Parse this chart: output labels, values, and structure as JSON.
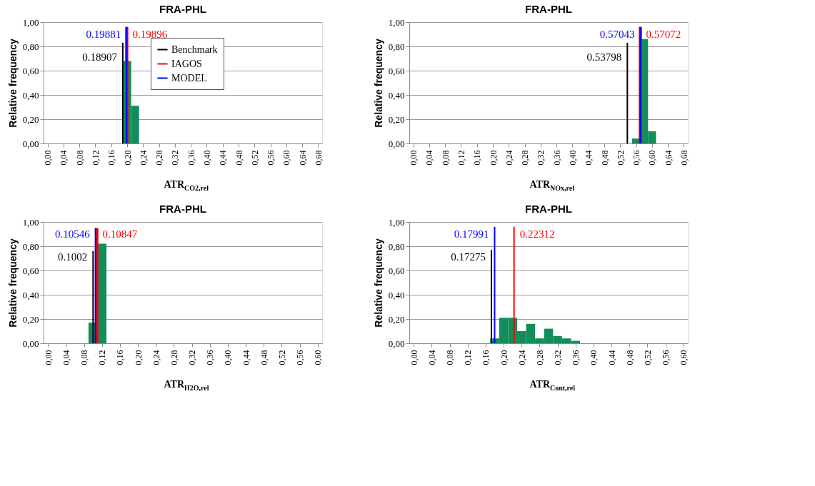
{
  "chart_data": [
    {
      "type": "histogram",
      "title": "FRA-PHL",
      "xlabel": "ATR$_{CO2,rel}$",
      "ylabel": "Relative frequency",
      "color": "#138d5a",
      "bins": [
        0.19,
        0.21,
        0.23
      ],
      "values": [
        0.68,
        0.31
      ],
      "series": [
        {
          "type": "line",
          "name": "Benchmark",
          "color": "#000000",
          "x": [
            0.18907,
            0.18907
          ],
          "values": [
            0,
            0.83
          ]
        },
        {
          "type": "line",
          "name": "IAGOS",
          "color": "#ff0000",
          "x": [
            0.19896,
            0.19896
          ],
          "values": [
            0,
            0.96
          ]
        },
        {
          "type": "line",
          "name": "MODEL",
          "color": "#0000ff",
          "x": [
            0.19881,
            0.19881
          ],
          "values": [
            0,
            0.96
          ]
        }
      ],
      "annotations": [
        {
          "text": "0.18907",
          "x": 0.18907,
          "y": 0.71
        },
        {
          "text": "0.19896",
          "x": 0.19896,
          "y": 0.9
        },
        {
          "text": "0.19881",
          "x": 0.19881,
          "y": 0.9
        }
      ],
      "xlim": [
        -0.01,
        0.69
      ],
      "xticks": [
        {
          "value": 0,
          "label": "0,00"
        },
        {
          "value": 0.04,
          "label": "0,04"
        },
        {
          "value": 0.08,
          "label": "0,08"
        },
        {
          "value": 0.12,
          "label": "0,12"
        },
        {
          "value": 0.16,
          "label": "0,16"
        },
        {
          "value": 0.2,
          "label": "0,20"
        },
        {
          "value": 0.24,
          "label": "0,24"
        },
        {
          "value": 0.28,
          "label": "0,28"
        },
        {
          "value": 0.32,
          "label": "0,32"
        },
        {
          "value": 0.36,
          "label": "0,36"
        },
        {
          "value": 0.4,
          "label": "0,40"
        },
        {
          "value": 0.44,
          "label": "0,44"
        },
        {
          "value": 0.48,
          "label": "0,48"
        },
        {
          "value": 0.52,
          "label": "0,52"
        },
        {
          "value": 0.56,
          "label": "0,56"
        },
        {
          "value": 0.6,
          "label": "0,60"
        },
        {
          "value": 0.64,
          "label": "0,64"
        },
        {
          "value": 0.68,
          "label": "0,68"
        }
      ],
      "ylim": [
        0,
        1
      ],
      "yticks": [
        {
          "value": 0,
          "label": "0,00"
        },
        {
          "value": 0.2,
          "label": "0,20"
        },
        {
          "value": 0.4,
          "label": "0,40"
        },
        {
          "value": 0.6,
          "label": "0,60"
        },
        {
          "value": 0.8,
          "label": "0,80"
        },
        {
          "value": 1,
          "label": "1,00"
        }
      ],
      "grid": "y",
      "legend": "top"
    },
    {
      "type": "histogram",
      "title": "FRA-PHL",
      "xlabel": "ATR$_{NOx,rel}$",
      "ylabel": "Relative frequency",
      "color": "#138d5a",
      "bins": [
        0.55,
        0.57,
        0.59,
        0.61
      ],
      "values": [
        0.04,
        0.86,
        0.1
      ],
      "series": [
        {
          "type": "line",
          "color": "#000000",
          "x": [
            0.53798,
            0.53798
          ],
          "values": [
            0,
            0.83
          ]
        },
        {
          "type": "line",
          "color": "#ff0000",
          "x": [
            0.57072,
            0.57072
          ],
          "values": [
            0,
            0.96
          ]
        },
        {
          "type": "line",
          "color": "#0000ff",
          "x": [
            0.57043,
            0.57043
          ],
          "values": [
            0,
            0.96
          ]
        }
      ],
      "annotations": [
        {
          "text": "0.53798",
          "x": 0.53798,
          "y": 0.71
        },
        {
          "text": "0.57072",
          "x": 0.57072,
          "y": 0.9
        },
        {
          "text": "0.57043",
          "x": 0.57043,
          "y": 0.9
        }
      ],
      "xlim": [
        -0.01,
        0.69
      ],
      "xticks": [
        {
          "value": 0,
          "label": "0,00"
        },
        {
          "value": 0.04,
          "label": "0,04"
        },
        {
          "value": 0.08,
          "label": "0,08"
        },
        {
          "value": 0.12,
          "label": "0,12"
        },
        {
          "value": 0.16,
          "label": "0,16"
        },
        {
          "value": 0.2,
          "label": "0,20"
        },
        {
          "value": 0.24,
          "label": "0,24"
        },
        {
          "value": 0.28,
          "label": "0,28"
        },
        {
          "value": 0.32,
          "label": "0,32"
        },
        {
          "value": 0.36,
          "label": "0,36"
        },
        {
          "value": 0.4,
          "label": "0,40"
        },
        {
          "value": 0.44,
          "label": "0,44"
        },
        {
          "value": 0.48,
          "label": "0,48"
        },
        {
          "value": 0.52,
          "label": "0,52"
        },
        {
          "value": 0.56,
          "label": "0,56"
        },
        {
          "value": 0.6,
          "label": "0,60"
        },
        {
          "value": 0.64,
          "label": "0,64"
        },
        {
          "value": 0.68,
          "label": "0,68"
        }
      ],
      "ylim": [
        0,
        1
      ],
      "yticks": [
        {
          "value": 0,
          "label": "0,00"
        },
        {
          "value": 0.2,
          "label": "0,20"
        },
        {
          "value": 0.4,
          "label": "0,40"
        },
        {
          "value": 0.6,
          "label": "0,60"
        },
        {
          "value": 0.8,
          "label": "0,80"
        },
        {
          "value": 1,
          "label": "1,00"
        }
      ],
      "grid": "y"
    },
    {
      "type": "histogram",
      "title": "FRA-PHL",
      "xlabel": "ATR$_{H2O,rel}$",
      "ylabel": "Relative frequency",
      "color": "#138d5a",
      "bins": [
        0.09,
        0.11,
        0.13
      ],
      "values": [
        0.17,
        0.82
      ],
      "series": [
        {
          "type": "line",
          "color": "#000000",
          "x": [
            0.1002,
            0.1002
          ],
          "values": [
            0,
            0.76
          ]
        },
        {
          "type": "line",
          "color": "#ff0000",
          "x": [
            0.10847,
            0.10847
          ],
          "values": [
            0,
            0.95
          ]
        },
        {
          "type": "line",
          "color": "#0000ff",
          "x": [
            0.10546,
            0.10546
          ],
          "values": [
            0,
            0.95
          ]
        }
      ],
      "annotations": [
        {
          "text": "0.1002",
          "x": 0.1002,
          "y": 0.71
        },
        {
          "text": "0.10847",
          "x": 0.10847,
          "y": 0.9
        },
        {
          "text": "0.10546",
          "x": 0.10546,
          "y": 0.9
        }
      ],
      "xlim": [
        -0.01,
        0.61
      ],
      "xticks": [
        {
          "value": 0,
          "label": "0,00"
        },
        {
          "value": 0.04,
          "label": "0,04"
        },
        {
          "value": 0.08,
          "label": "0,08"
        },
        {
          "value": 0.12,
          "label": "0,12"
        },
        {
          "value": 0.16,
          "label": "0,16"
        },
        {
          "value": 0.2,
          "label": "0,20"
        },
        {
          "value": 0.24,
          "label": "0,24"
        },
        {
          "value": 0.28,
          "label": "0,28"
        },
        {
          "value": 0.32,
          "label": "0,32"
        },
        {
          "value": 0.36,
          "label": "0,36"
        },
        {
          "value": 0.4,
          "label": "0,40"
        },
        {
          "value": 0.44,
          "label": "0,44"
        },
        {
          "value": 0.48,
          "label": "0,48"
        },
        {
          "value": 0.52,
          "label": "0,52"
        },
        {
          "value": 0.56,
          "label": "0,56"
        },
        {
          "value": 0.6,
          "label": "0,60"
        }
      ],
      "ylim": [
        0,
        1
      ],
      "yticks": [
        {
          "value": 0,
          "label": "0,00"
        },
        {
          "value": 0.2,
          "label": "0,20"
        },
        {
          "value": 0.4,
          "label": "0,40"
        },
        {
          "value": 0.6,
          "label": "0,60"
        },
        {
          "value": 0.8,
          "label": "0,80"
        },
        {
          "value": 1,
          "label": "1,00"
        }
      ],
      "grid": "y"
    },
    {
      "type": "histogram",
      "title": "FRA-PHL",
      "xlabel": "ATR$_{Cont,rel}$",
      "ylabel": "Relative frequency",
      "color": "#138d5a",
      "bins": [
        0.17,
        0.19,
        0.21,
        0.23,
        0.25,
        0.27,
        0.29,
        0.31,
        0.33,
        0.35,
        0.37
      ],
      "values": [
        0.04,
        0.21,
        0.21,
        0.1,
        0.16,
        0.04,
        0.12,
        0.06,
        0.04,
        0.02
      ],
      "series": [
        {
          "type": "line",
          "color": "#000000",
          "x": [
            0.17275,
            0.17275
          ],
          "values": [
            0,
            0.77
          ]
        },
        {
          "type": "line",
          "color": "#ff0000",
          "x": [
            0.22312,
            0.22312
          ],
          "values": [
            0,
            0.96
          ]
        },
        {
          "type": "line",
          "color": "#0000ff",
          "x": [
            0.17991,
            0.17991
          ],
          "values": [
            0,
            0.96
          ]
        }
      ],
      "annotations": [
        {
          "text": "0.17275",
          "x": 0.17275,
          "y": 0.71
        },
        {
          "text": "0.22312",
          "x": 0.22312,
          "y": 0.9
        },
        {
          "text": "0.17991",
          "x": 0.17991,
          "y": 0.9
        }
      ],
      "xlim": [
        -0.01,
        0.61
      ],
      "xticks": [
        {
          "value": 0,
          "label": "0,00"
        },
        {
          "value": 0.04,
          "label": "0,04"
        },
        {
          "value": 0.08,
          "label": "0,08"
        },
        {
          "value": 0.12,
          "label": "0,12"
        },
        {
          "value": 0.16,
          "label": "0,16"
        },
        {
          "value": 0.2,
          "label": "0,20"
        },
        {
          "value": 0.24,
          "label": "0,24"
        },
        {
          "value": 0.28,
          "label": "0,28"
        },
        {
          "value": 0.32,
          "label": "0,32"
        },
        {
          "value": 0.36,
          "label": "0,36"
        },
        {
          "value": 0.4,
          "label": "0,40"
        },
        {
          "value": 0.44,
          "label": "0,44"
        },
        {
          "value": 0.48,
          "label": "0,48"
        },
        {
          "value": 0.52,
          "label": "0,52"
        },
        {
          "value": 0.56,
          "label": "0,56"
        },
        {
          "value": 0.6,
          "label": "0,60"
        }
      ],
      "ylim": [
        0,
        1
      ],
      "yticks": [
        {
          "value": 0,
          "label": "0,00"
        },
        {
          "value": 0.2,
          "label": "0,20"
        },
        {
          "value": 0.4,
          "label": "0,40"
        },
        {
          "value": 0.6,
          "label": "0,60"
        },
        {
          "value": 0.8,
          "label": "0,80"
        },
        {
          "value": 1,
          "label": "1,00"
        }
      ],
      "grid": "y"
    }
  ]
}
